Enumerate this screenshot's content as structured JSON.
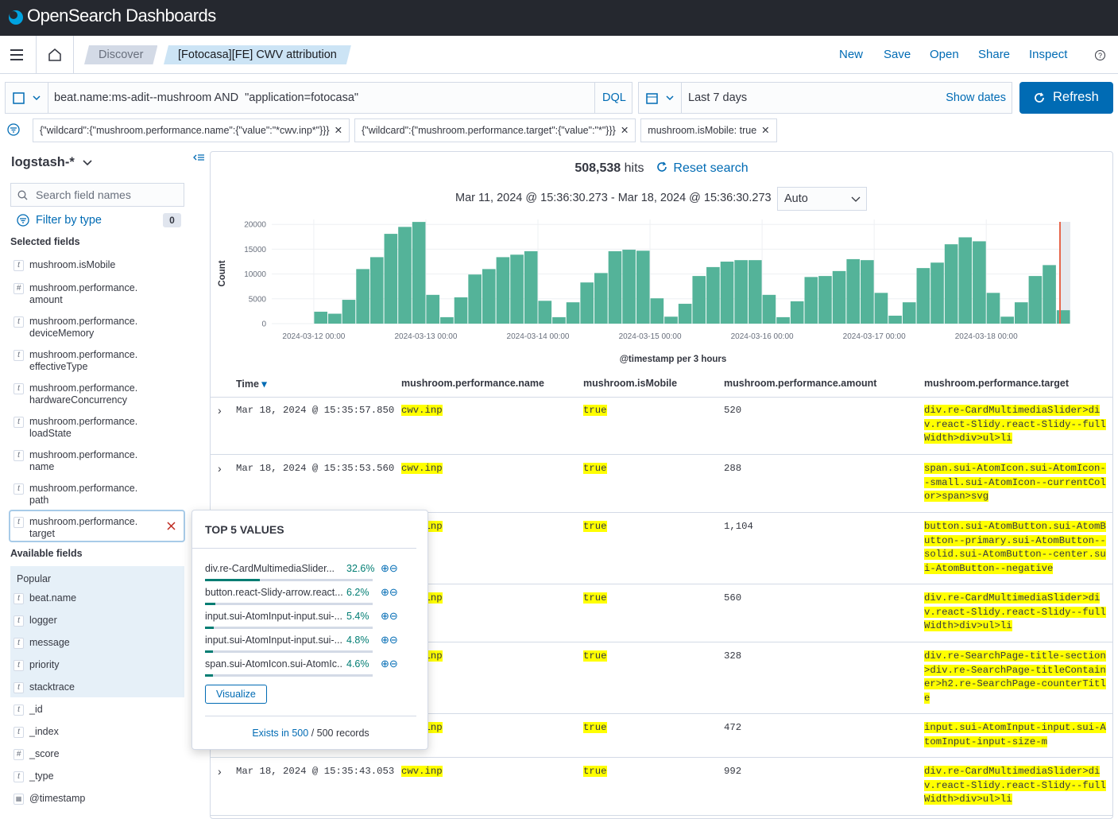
{
  "header": {
    "brand": "OpenSearch Dashboards"
  },
  "nav": {
    "breadcrumbs": [
      "Discover",
      "[Fotocasa][FE] CWV attribution"
    ],
    "actions": [
      "New",
      "Save",
      "Open",
      "Share",
      "Inspect"
    ]
  },
  "query": {
    "text": "beat.name:ms-adit--mushroom AND  \"application=fotocasa\"",
    "language": "DQL",
    "date_range": "Last 7 days",
    "show_dates": "Show dates",
    "refresh": "Refresh"
  },
  "filters": [
    "{\"wildcard\":{\"mushroom.performance.name\":{\"value\":\"*cwv.inp*\"}}}",
    "{\"wildcard\":{\"mushroom.performance.target\":{\"value\":\"*\"}}}",
    "mushroom.isMobile: true"
  ],
  "sidebar": {
    "index": "logstash-*",
    "search_placeholder": "Search field names",
    "filter_by_type": "Filter by type",
    "filter_count": "0",
    "selected_title": "Selected fields",
    "selected": [
      {
        "type": "t",
        "name": "mushroom.isMobile"
      },
      {
        "type": "#",
        "name": "mushroom.performance.amount"
      },
      {
        "type": "t",
        "name": "mushroom.performance.deviceMemory"
      },
      {
        "type": "t",
        "name": "mushroom.performance.effectiveType"
      },
      {
        "type": "t",
        "name": "mushroom.performance.hardwareConcurrency"
      },
      {
        "type": "t",
        "name": "mushroom.performance.loadState"
      },
      {
        "type": "t",
        "name": "mushroom.performance.name"
      },
      {
        "type": "t",
        "name": "mushroom.performance.path"
      },
      {
        "type": "t",
        "name": "mushroom.performance.target"
      }
    ],
    "available_title": "Available fields",
    "popular_title": "Popular",
    "popular": [
      {
        "type": "t",
        "name": "beat.name"
      },
      {
        "type": "t",
        "name": "logger"
      },
      {
        "type": "t",
        "name": "message"
      },
      {
        "type": "t",
        "name": "priority"
      },
      {
        "type": "t",
        "name": "stacktrace"
      }
    ],
    "other": [
      {
        "type": "t",
        "name": "_id"
      },
      {
        "type": "t",
        "name": "_index"
      },
      {
        "type": "#",
        "name": "_score"
      },
      {
        "type": "t",
        "name": "_type"
      },
      {
        "name": "@timestamp"
      }
    ]
  },
  "results": {
    "hits": "508,538",
    "hits_label": "hits",
    "reset": "Reset search",
    "time_range": "Mar 11, 2024 @ 15:36:30.273 - Mar 18, 2024 @ 15:36:30.273",
    "interval": "Auto"
  },
  "chart_data": {
    "type": "bar",
    "ylabel": "Count",
    "xlabel": "@timestamp per 3 hours",
    "color": "#54b399",
    "grid": true,
    "xlim": [
      "2024-03-11 15:00",
      "2024-03-18 18:00"
    ],
    "xticks": [
      "2024-03-12 00:00",
      "2024-03-13 00:00",
      "2024-03-14 00:00",
      "2024-03-15 00:00",
      "2024-03-16 00:00",
      "2024-03-17 00:00",
      "2024-03-18 00:00"
    ],
    "ylim": [
      0,
      21000
    ],
    "yticks": [
      0,
      5000,
      10000,
      15000,
      20000
    ],
    "x": [
      "2024-03-12 00:00",
      "2024-03-12 03:00",
      "2024-03-12 06:00",
      "2024-03-12 09:00",
      "2024-03-12 12:00",
      "2024-03-12 15:00",
      "2024-03-12 18:00",
      "2024-03-12 21:00",
      "2024-03-13 00:00",
      "2024-03-13 03:00",
      "2024-03-13 06:00",
      "2024-03-13 09:00",
      "2024-03-13 12:00",
      "2024-03-13 15:00",
      "2024-03-13 18:00",
      "2024-03-13 21:00",
      "2024-03-14 00:00",
      "2024-03-14 03:00",
      "2024-03-14 06:00",
      "2024-03-14 09:00",
      "2024-03-14 12:00",
      "2024-03-14 15:00",
      "2024-03-14 18:00",
      "2024-03-14 21:00",
      "2024-03-15 00:00",
      "2024-03-15 03:00",
      "2024-03-15 06:00",
      "2024-03-15 09:00",
      "2024-03-15 12:00",
      "2024-03-15 15:00",
      "2024-03-15 18:00",
      "2024-03-15 21:00",
      "2024-03-16 00:00",
      "2024-03-16 03:00",
      "2024-03-16 06:00",
      "2024-03-16 09:00",
      "2024-03-16 12:00",
      "2024-03-16 15:00",
      "2024-03-16 18:00",
      "2024-03-16 21:00",
      "2024-03-17 00:00",
      "2024-03-17 03:00",
      "2024-03-17 06:00",
      "2024-03-17 09:00",
      "2024-03-17 12:00",
      "2024-03-17 15:00",
      "2024-03-17 18:00",
      "2024-03-17 21:00",
      "2024-03-18 00:00",
      "2024-03-18 03:00",
      "2024-03-18 06:00",
      "2024-03-18 09:00",
      "2024-03-18 12:00",
      "2024-03-18 15:00"
    ],
    "values": [
      2400,
      2000,
      4800,
      11000,
      13400,
      18100,
      19500,
      20500,
      5800,
      1300,
      5300,
      9900,
      11000,
      13400,
      13900,
      14600,
      4600,
      1300,
      4300,
      8300,
      10200,
      14600,
      14900,
      14700,
      5100,
      1400,
      4000,
      9600,
      11400,
      12500,
      12800,
      12800,
      5800,
      1300,
      4500,
      9400,
      9600,
      10600,
      13000,
      12800,
      6200,
      1600,
      4300,
      11200,
      12300,
      16000,
      17400,
      16600,
      6200,
      1400,
      4300,
      9600,
      11800,
      2700
    ]
  },
  "table": {
    "columns": [
      "Time",
      "mushroom.performance.name",
      "mushroom.isMobile",
      "mushroom.performance.amount",
      "mushroom.performance.target"
    ],
    "rows": [
      [
        "Mar 18, 2024 @ 15:35:57.850",
        "cwv.inp",
        "true",
        "520",
        "div.re-CardMultimediaSlider>div.react-Slidy.react-Slidy--fullWidth>div>ul>li"
      ],
      [
        "Mar 18, 2024 @ 15:35:53.560",
        "cwv.inp",
        "true",
        "288",
        "span.sui-AtomIcon.sui-AtomIcon--small.sui-AtomIcon--currentColor>span>svg"
      ],
      [
        null,
        "cwv.inp",
        "true",
        "1,104",
        "button.sui-AtomButton.sui-AtomButton--primary.sui-AtomButton--solid.sui-AtomButton--center.sui-AtomButton--negative"
      ],
      [
        null,
        "cwv.inp",
        "true",
        "560",
        "div.re-CardMultimediaSlider>div.react-Slidy.react-Slidy--fullWidth>div>ul>li"
      ],
      [
        null,
        "cwv.inp",
        "true",
        "328",
        "div.re-SearchPage-title-section>div.re-SearchPage-titleContainer>h2.re-SearchPage-counterTitle"
      ],
      [
        null,
        "cwv.inp",
        "true",
        "472",
        "input.sui-AtomInput-input.sui-AtomInput-input-size-m"
      ],
      [
        "Mar 18, 2024 @ 15:35:43.053",
        "cwv.inp",
        "true",
        "992",
        "div.re-CardMultimediaSlider>div.react-Slidy.react-Slidy--fullWidth>div>ul>li"
      ]
    ]
  },
  "popover": {
    "title": "TOP 5 VALUES",
    "items": [
      {
        "label": "div.re-CardMultimediaSlider...",
        "value": 32.6,
        "value_label": "32.6%"
      },
      {
        "label": "button.react-Slidy-arrow.react...",
        "value": 6.2,
        "value_label": "6.2%"
      },
      {
        "label": "input.sui-AtomInput-input.sui-...",
        "value": 5.4,
        "value_label": "5.4%"
      },
      {
        "label": "input.sui-AtomInput-input.sui-...",
        "value": 4.8,
        "value_label": "4.8%"
      },
      {
        "label": "span.sui-AtomIcon.sui-AtomIc...",
        "value": 4.6,
        "value_label": "4.6%"
      }
    ],
    "button": "Visualize",
    "exists": "Exists in 500",
    "records": "/ 500 records"
  }
}
